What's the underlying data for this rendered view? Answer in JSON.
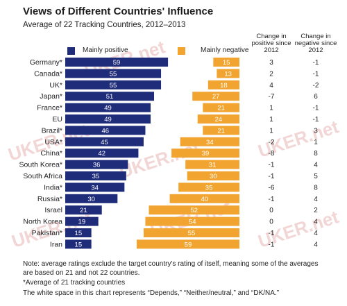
{
  "header": {
    "title": "Views of Different Countries' Influence",
    "subtitle": "Average of 22 Tracking Countries, 2012–2013"
  },
  "columns": {
    "positive_change_l1": "Change in",
    "positive_change_l2": "positive since",
    "positive_change_l3": "2012",
    "negative_change_l1": "Change in",
    "negative_change_l2": "negative since",
    "negative_change_l3": "2012"
  },
  "watermark_text": "UKER.net",
  "chart_data": {
    "type": "bar",
    "title": "Views of Different Countries' Influence",
    "subtitle": "Average of 22 Tracking Countries, 2012–2013",
    "categories": [
      "Germany*",
      "Canada*",
      "UK*",
      "Japan*",
      "France*",
      "EU",
      "Brazil*",
      "USA*",
      "China*",
      "South Korea*",
      "South Africa",
      "India*",
      "Russia*",
      "Israel",
      "North Korea",
      "Pakistan*",
      "Iran"
    ],
    "series": [
      {
        "name": "Mainly positive",
        "color": "#1f2c7a",
        "values": [
          59,
          55,
          55,
          51,
          49,
          49,
          46,
          45,
          42,
          36,
          35,
          34,
          30,
          21,
          19,
          15,
          15
        ]
      },
      {
        "name": "Mainly negative",
        "color": "#f1a530",
        "values": [
          15,
          13,
          18,
          27,
          21,
          24,
          21,
          34,
          39,
          31,
          30,
          35,
          40,
          52,
          54,
          55,
          59
        ]
      }
    ],
    "change_positive_since_2012": [
      "3",
      "2",
      "4",
      "-7",
      "1",
      "1",
      "1",
      "-2",
      "-8",
      "-1",
      "-1",
      "-6",
      "-1",
      "0",
      "0",
      "-1",
      "-1"
    ],
    "change_negative_since_2012": [
      "-1",
      "-1",
      "-2",
      "6",
      "-1",
      "-1",
      "3",
      "1",
      "8",
      "4",
      "5",
      "8",
      "4",
      "2",
      "4",
      "4",
      "4"
    ],
    "xlim": [
      0,
      100
    ],
    "legend": "top"
  },
  "notes": {
    "line1": "Note: average ratings exclude the target country's rating of itself, meaning some of the averages are based on 21 and not 22 countries.",
    "line2": "*Average of 21 tracking countries",
    "line3": "The white space in this chart represents “Depends,” “Neither/neutral,” and “DK/NA.”"
  }
}
